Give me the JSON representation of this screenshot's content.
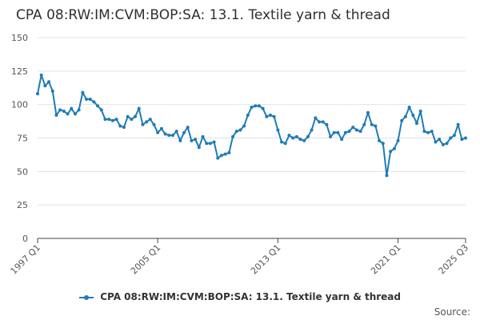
{
  "chart_data": {
    "type": "line",
    "title": "CPA 08:RW:IM:CVM:BOP:SA: 13.1. Textile yarn & thread",
    "xlabel": "",
    "ylabel": "",
    "ylim": [
      0,
      150
    ],
    "yticks": [
      0,
      25,
      50,
      75,
      100,
      125,
      150
    ],
    "xtick_labels": [
      "1997 Q1",
      "2005 Q1",
      "2013 Q1",
      "2021 Q1",
      "2025 Q3"
    ],
    "xtick_index": [
      0,
      32,
      64,
      96,
      114
    ],
    "grid": true,
    "legend_position": "bottom",
    "series": [
      {
        "name": "CPA 08:RW:IM:CVM:BOP:SA: 13.1. Textile yarn & thread",
        "color": "#1f7bb6",
        "values": [
          108,
          122,
          114,
          117,
          110,
          92,
          96,
          95,
          93,
          97,
          93,
          96,
          109,
          104,
          104,
          102,
          99,
          96,
          89,
          89,
          88,
          89,
          84,
          83,
          91,
          89,
          91,
          97,
          85,
          87,
          89,
          85,
          79,
          82,
          78,
          77,
          77,
          80,
          73,
          79,
          83,
          73,
          74,
          68,
          76,
          71,
          71,
          72,
          60,
          62,
          63,
          64,
          76,
          80,
          81,
          84,
          92,
          98,
          99,
          99,
          97,
          91,
          92,
          91,
          81,
          72,
          71,
          77,
          75,
          76,
          74,
          73,
          76,
          81,
          90,
          87,
          87,
          85,
          76,
          79,
          79,
          74,
          79,
          80,
          83,
          81,
          80,
          85,
          94,
          85,
          84,
          73,
          71,
          47,
          65,
          67,
          73,
          88,
          91,
          98,
          92,
          86,
          95,
          80,
          79,
          80,
          72,
          74,
          70,
          71,
          75,
          77,
          85,
          74,
          75
        ]
      }
    ],
    "source_label": "Source:"
  }
}
